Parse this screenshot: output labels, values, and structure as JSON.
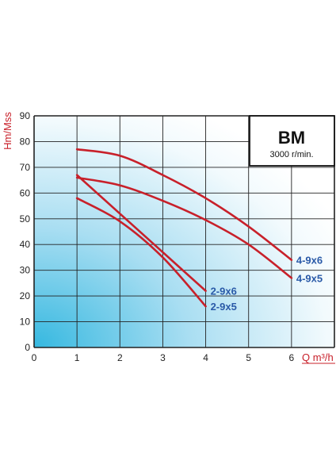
{
  "chart_data": {
    "type": "line",
    "title": "BM",
    "subtitle": "3000 r/min.",
    "xlabel": "Q m³/h",
    "ylabel": "Hm/Mss",
    "xlim": [
      0,
      7
    ],
    "ylim": [
      0,
      90
    ],
    "xticks": [
      "0",
      "1",
      "2",
      "3",
      "4",
      "5",
      "6"
    ],
    "yticks": [
      "0",
      "10",
      "20",
      "30",
      "40",
      "50",
      "60",
      "70",
      "80",
      "90"
    ],
    "grid": true,
    "colors": {
      "curve": "#c8202a",
      "label": "#2a5aa8",
      "grid": "#222222"
    },
    "series": [
      {
        "name": "4-9x6",
        "x": [
          1,
          2,
          3,
          4,
          5,
          6
        ],
        "y": [
          77,
          74.5,
          67,
          58,
          47,
          34
        ]
      },
      {
        "name": "4-9x5",
        "x": [
          1,
          2,
          3,
          4,
          5,
          6
        ],
        "y": [
          66,
          63,
          57,
          49.5,
          40,
          27
        ]
      },
      {
        "name": "2-9x6",
        "x": [
          1,
          2,
          3,
          4
        ],
        "y": [
          67,
          52,
          37,
          22
        ]
      },
      {
        "name": "2-9x5",
        "x": [
          1,
          2,
          3,
          4
        ],
        "y": [
          58,
          49,
          35,
          16
        ]
      }
    ]
  }
}
